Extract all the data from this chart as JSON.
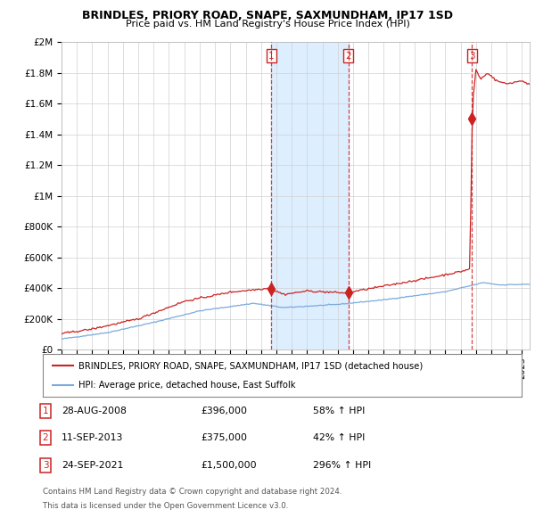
{
  "title1": "BRINDLES, PRIORY ROAD, SNAPE, SAXMUNDHAM, IP17 1SD",
  "title2": "Price paid vs. HM Land Registry's House Price Index (HPI)",
  "legend_line1": "BRINDLES, PRIORY ROAD, SNAPE, SAXMUNDHAM, IP17 1SD (detached house)",
  "legend_line2": "HPI: Average price, detached house, East Suffolk",
  "sale1_date": "28-AUG-2008",
  "sale1_price": 396000,
  "sale1_label": "£396,000",
  "sale1_hpi": "58% ↑ HPI",
  "sale1_x": 2008.66,
  "sale2_date": "11-SEP-2013",
  "sale2_price": 375000,
  "sale2_label": "£375,000",
  "sale2_hpi": "42% ↑ HPI",
  "sale2_x": 2013.7,
  "sale3_date": "24-SEP-2021",
  "sale3_price": 1500000,
  "sale3_label": "£1,500,000",
  "sale3_hpi": "296% ↑ HPI",
  "sale3_x": 2021.73,
  "ylim_max": 2000000,
  "xlim_min": 1995.0,
  "xlim_max": 2025.5,
  "hpi_color": "#7aaadd",
  "price_color": "#cc2222",
  "shade_color": "#ddeeff",
  "footnote1": "Contains HM Land Registry data © Crown copyright and database right 2024.",
  "footnote2": "This data is licensed under the Open Government Licence v3.0."
}
